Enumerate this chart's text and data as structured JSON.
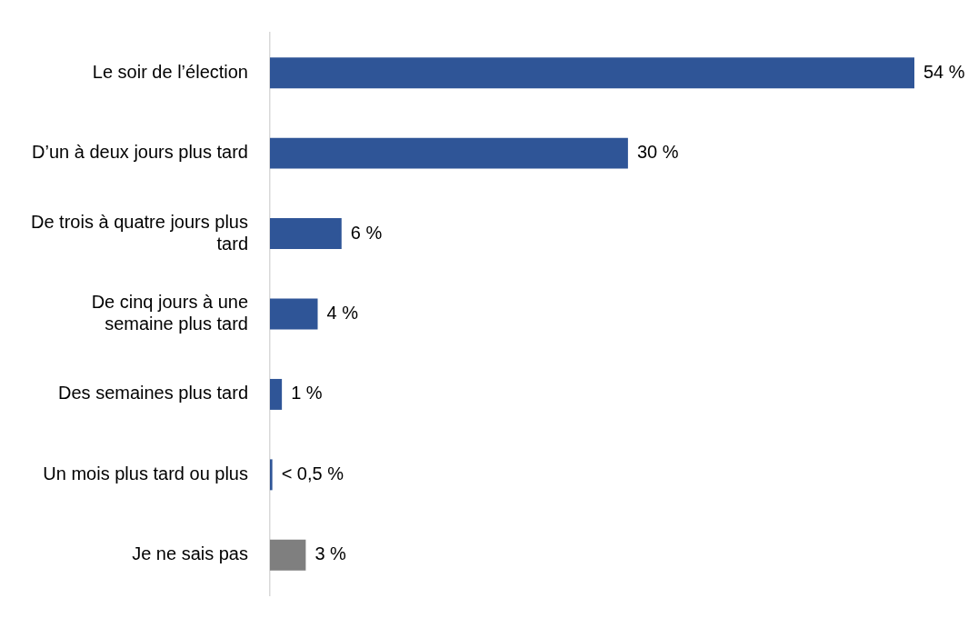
{
  "chart_data": {
    "type": "bar",
    "orientation": "horizontal",
    "categories": [
      "Le soir de l’élection",
      "D’un à deux jours plus tard",
      "De trois à quatre jours plus tard",
      "De cinq jours à une semaine plus tard",
      "Des semaines plus tard",
      "Un mois plus tard ou plus",
      "Je ne sais pas"
    ],
    "values": [
      54,
      30,
      6,
      4,
      1,
      0.2,
      3
    ],
    "colors": [
      "#2f5597",
      "#2f5597",
      "#2f5597",
      "#2f5597",
      "#2f5597",
      "#2f5597",
      "#7f7f7f"
    ],
    "value_labels": [
      "54 %",
      "30 %",
      "6 %",
      "4 %",
      "1 %",
      "< 0,5 %",
      "3 %"
    ],
    "legend": false
  }
}
